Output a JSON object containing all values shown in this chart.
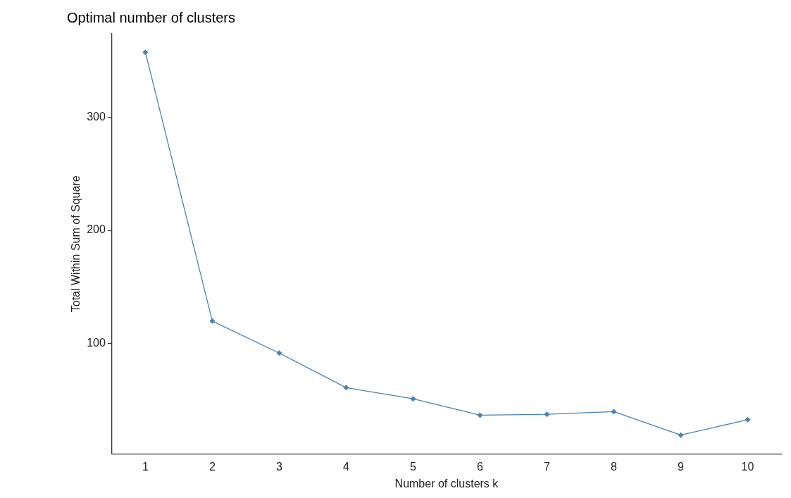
{
  "chart_data": {
    "type": "line",
    "title": "Optimal number of clusters",
    "xlabel": "Number of clusters k",
    "ylabel": "Total Within Sum of Square",
    "categories": [
      "1",
      "2",
      "3",
      "4",
      "5",
      "6",
      "7",
      "8",
      "9",
      "10"
    ],
    "series": [
      {
        "color": "#4682b4",
        "values": [
          357.7,
          119.7,
          91.4,
          60.8,
          50.9,
          36.4,
          37.2,
          39.5,
          18.8,
          32.4
        ]
      }
    ],
    "ylim": [
      2,
      374
    ],
    "yticks": [
      100,
      200,
      300
    ],
    "grid": false,
    "legend": false,
    "marker": "diamond",
    "line_style": "solid"
  }
}
